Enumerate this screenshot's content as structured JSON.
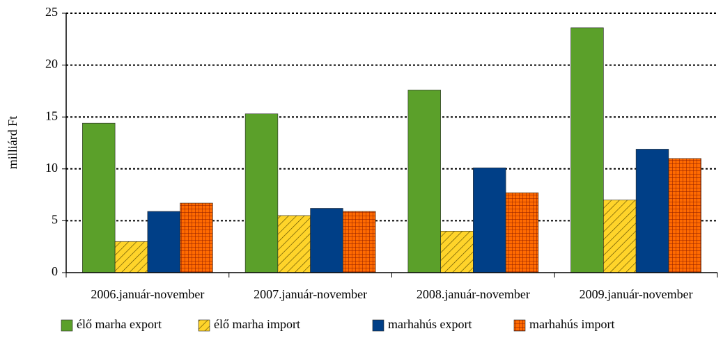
{
  "chart_data": {
    "type": "bar",
    "ylabel": "milliárd Ft",
    "categories": [
      "2006.január-november",
      "2007.január-november",
      "2008.január-november",
      "2009.január-november"
    ],
    "series": [
      {
        "name": "élő marha export",
        "color": "#5ba02a",
        "pattern": "solid",
        "values": [
          14.4,
          15.3,
          17.6,
          23.6
        ]
      },
      {
        "name": "élő marha import",
        "color": "#ffd42a",
        "pattern": "diagonal",
        "values": [
          3.0,
          5.5,
          4.0,
          7.0
        ]
      },
      {
        "name": "marhahús export",
        "color": "#003f87",
        "pattern": "solid",
        "values": [
          5.9,
          6.2,
          10.1,
          11.9
        ]
      },
      {
        "name": "marhahús import",
        "color": "#ff6a00",
        "pattern": "grid",
        "values": [
          6.7,
          5.9,
          7.7,
          11.0
        ]
      }
    ],
    "ylim": [
      0,
      25
    ],
    "yticks": [
      0,
      5,
      10,
      15,
      20,
      25
    ],
    "grid": true,
    "legend": "bottom"
  }
}
